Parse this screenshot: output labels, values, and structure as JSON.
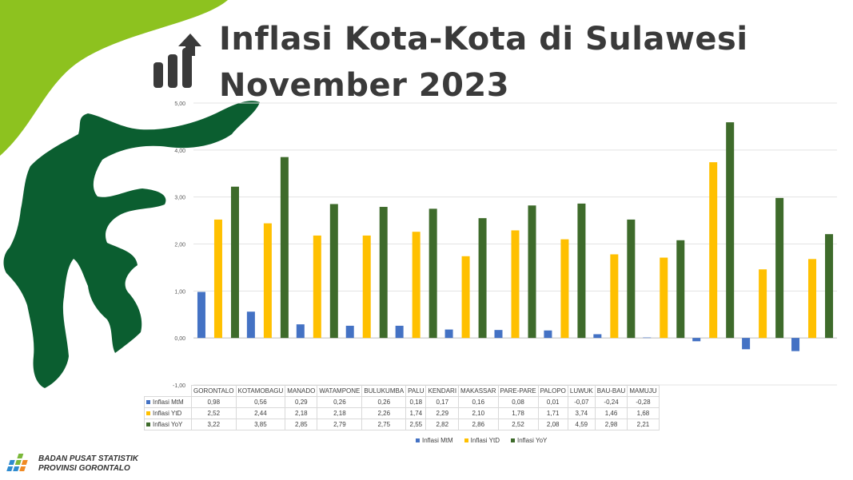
{
  "title": {
    "line1": "Inflasi Kota-Kota di Sulawesi",
    "line2": "November 2023"
  },
  "colors": {
    "mtm": "#4472c4",
    "ytd": "#ffc000",
    "yoy": "#3e6b2b",
    "accent_green": "#8dc21f",
    "map_green": "#0b5e30",
    "title_text": "#3a3a3a"
  },
  "icons": {
    "title": "growth-bar-arrow-icon",
    "map": "sulawesi-map-icon",
    "logo": "bps-logo-icon"
  },
  "chart_data": {
    "type": "bar",
    "categories": [
      "GORONTALO",
      "KOTAMOBAGU",
      "MANADO",
      "WATAMPONE",
      "BULUKUMBA",
      "PALU",
      "KENDARI",
      "MAKASSAR",
      "PARE-PARE",
      "PALOPO",
      "LUWUK",
      "BAU-BAU",
      "MAMUJU"
    ],
    "series": [
      {
        "name": "Inflasi MtM",
        "values": [
          0.98,
          0.56,
          0.29,
          0.26,
          0.26,
          0.18,
          0.17,
          0.16,
          0.08,
          0.01,
          -0.07,
          -0.24,
          -0.28
        ],
        "labels": [
          "0,98",
          "0,56",
          "0,29",
          "0,26",
          "0,26",
          "0,18",
          "0,17",
          "0,16",
          "0,08",
          "0,01",
          "-0,07",
          "-0,24",
          "-0,28"
        ]
      },
      {
        "name": "Inflasi YtD",
        "values": [
          2.52,
          2.44,
          2.18,
          2.18,
          2.26,
          1.74,
          2.29,
          2.1,
          1.78,
          1.71,
          3.74,
          1.46,
          1.68
        ],
        "labels": [
          "2,52",
          "2,44",
          "2,18",
          "2,18",
          "2,26",
          "1,74",
          "2,29",
          "2,10",
          "1,78",
          "1,71",
          "3,74",
          "1,46",
          "1,68"
        ]
      },
      {
        "name": "Inflasi YoY",
        "values": [
          3.22,
          3.85,
          2.85,
          2.79,
          2.75,
          2.55,
          2.82,
          2.86,
          2.52,
          2.08,
          4.59,
          2.98,
          2.21
        ],
        "labels": [
          "3,22",
          "3,85",
          "2,85",
          "2,79",
          "2,75",
          "2,55",
          "2,82",
          "2,86",
          "2,52",
          "2,08",
          "4,59",
          "2,98",
          "2,21"
        ]
      }
    ],
    "ylim": [
      -1.0,
      5.0
    ],
    "yticks": [
      -1.0,
      0.0,
      1.0,
      2.0,
      3.0,
      4.0,
      5.0
    ],
    "ytick_labels": [
      "-1,00",
      "0,00",
      "1,00",
      "2,00",
      "3,00",
      "4,00",
      "5,00"
    ],
    "grid": true,
    "legend": "bottom"
  },
  "footer": {
    "line1": "BADAN PUSAT STATISTIK",
    "line2": "PROVINSI GORONTALO"
  }
}
